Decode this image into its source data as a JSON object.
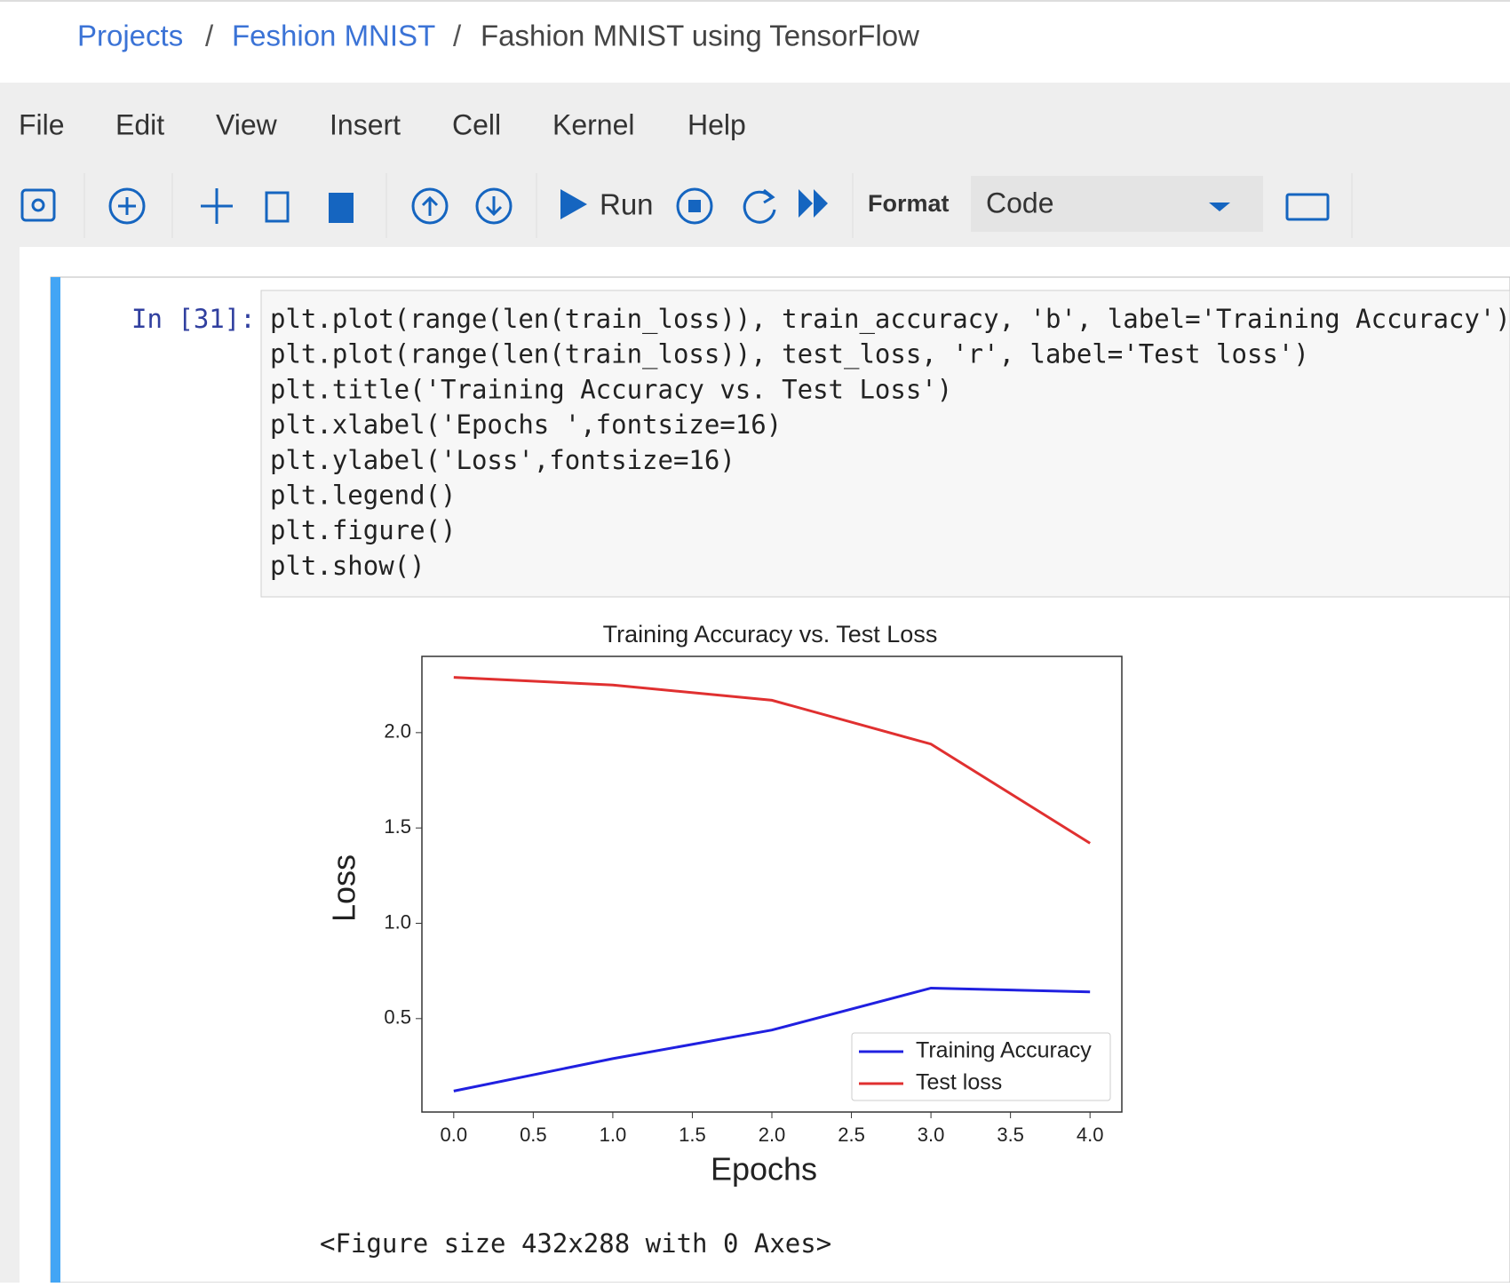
{
  "header": {
    "breadcrumb": [
      "Projects",
      "Feshion MNIST",
      "Fashion MNIST using TensorFlow"
    ],
    "separator": "/"
  },
  "menu": [
    "File",
    "Edit",
    "View",
    "Insert",
    "Cell",
    "Kernel",
    "Help"
  ],
  "toolbar": {
    "run": "Run",
    "format_label": "Format",
    "format_value": "Code"
  },
  "cell": {
    "prompt": "In [31]:",
    "code": [
      "plt.plot(range(len(train_loss)), train_accuracy, 'b', label='Training Accuracy')",
      "plt.plot(range(len(train_loss)), test_loss, 'r', label='Test loss')",
      "plt.title('Training Accuracy vs. Test Loss')",
      "plt.xlabel('Epochs ',fontsize=16)",
      "plt.ylabel('Loss',fontsize=16)",
      "plt.legend()",
      "plt.figure()",
      "plt.show()"
    ]
  },
  "chart_data": {
    "type": "line",
    "title": "Training Accuracy vs. Test Loss",
    "x_label": "Epochs",
    "y_label": "Loss",
    "x": [
      0,
      1,
      2,
      3,
      4
    ],
    "series": [
      {
        "name": "Training Accuracy",
        "color": "#2020e0",
        "values": [
          0.12,
          0.29,
          0.44,
          0.66,
          0.64
        ]
      },
      {
        "name": "Test loss",
        "color": "#e03030",
        "values": [
          2.29,
          2.25,
          2.17,
          1.94,
          1.42
        ]
      }
    ],
    "xlim": [
      -0.2,
      4.2
    ],
    "xticks": [
      {
        "value": 0,
        "label": "0.0"
      },
      0.5,
      {
        "value": 1,
        "label": "1.0"
      },
      1.5,
      {
        "value": 2,
        "label": "2.0"
      },
      2.5,
      {
        "value": 3,
        "label": "3.0"
      },
      3.5,
      {
        "value": 4,
        "label": "4.0"
      }
    ],
    "ylim": [
      0.01,
      2.4
    ],
    "yticks": [
      0.5,
      {
        "value": 1,
        "label": "1.0"
      },
      1.5,
      {
        "value": 2,
        "label": "2.0"
      }
    ],
    "grid": false,
    "legend": "lower right"
  },
  "output": "<Figure size 432x288 with 0 Axes>"
}
